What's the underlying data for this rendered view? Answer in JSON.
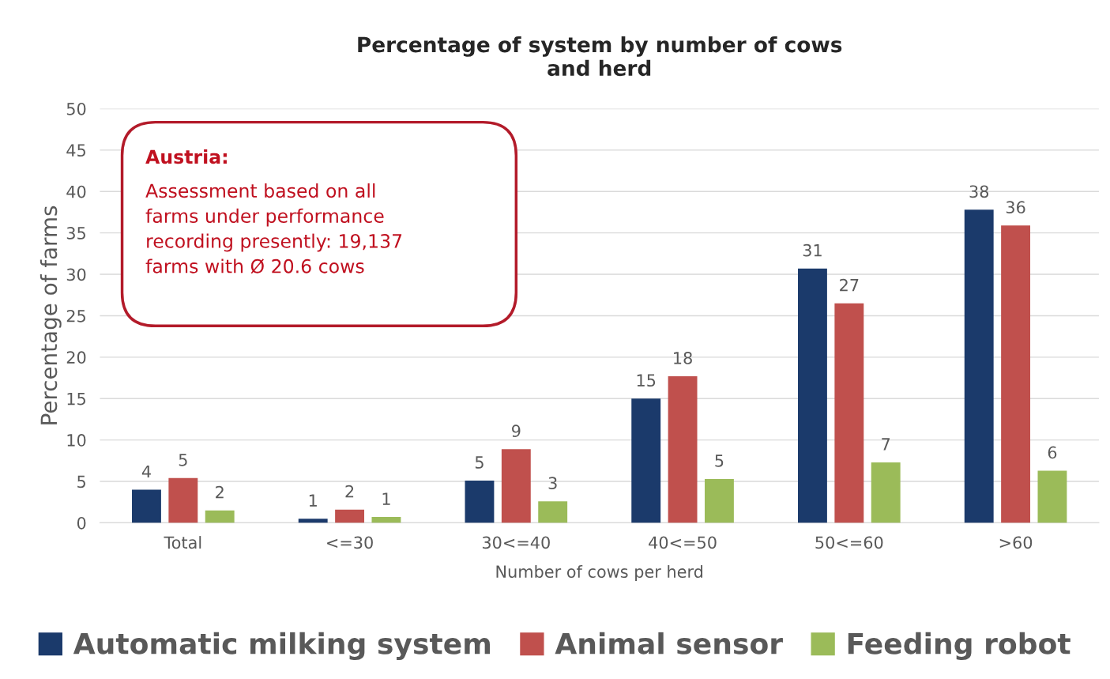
{
  "chart_data": {
    "type": "bar",
    "title": "Percentage of system by number of cows\nand herd",
    "xlabel": "Number of cows per herd",
    "ylabel": "Percentage of farms",
    "categories": [
      "Total",
      "<=30",
      "30<=40",
      "40<=50",
      "50<=60",
      ">60"
    ],
    "series": [
      {
        "name": "Automatic milking system",
        "color": "#1b3a6b",
        "values": [
          4.0,
          0.5,
          5.1,
          15.0,
          30.7,
          37.8
        ],
        "value_labels": [
          "4",
          "1",
          "5",
          "15",
          "31",
          "38"
        ]
      },
      {
        "name": "Animal sensor",
        "color": "#c0504d",
        "values": [
          5.4,
          1.6,
          8.9,
          17.7,
          26.5,
          35.9
        ],
        "value_labels": [
          "5",
          "2",
          "9",
          "18",
          "27",
          "36"
        ]
      },
      {
        "name": "Feeding robot",
        "color": "#9bbb59",
        "values": [
          1.5,
          0.7,
          2.6,
          5.3,
          7.3,
          6.3
        ],
        "value_labels": [
          "2",
          "1",
          "3",
          "5",
          "7",
          "6"
        ]
      }
    ],
    "ylim": [
      0,
      50
    ],
    "yticks": [
      0,
      5,
      10,
      15,
      20,
      25,
      30,
      35,
      40,
      45,
      50
    ],
    "grid": "y",
    "legend": "bottom",
    "annotations": [
      "Austria:",
      "Assessment based on all\nfarms under performance\nrecording presently: 19,137\nfarms with Ø 20.6 cows"
    ]
  }
}
